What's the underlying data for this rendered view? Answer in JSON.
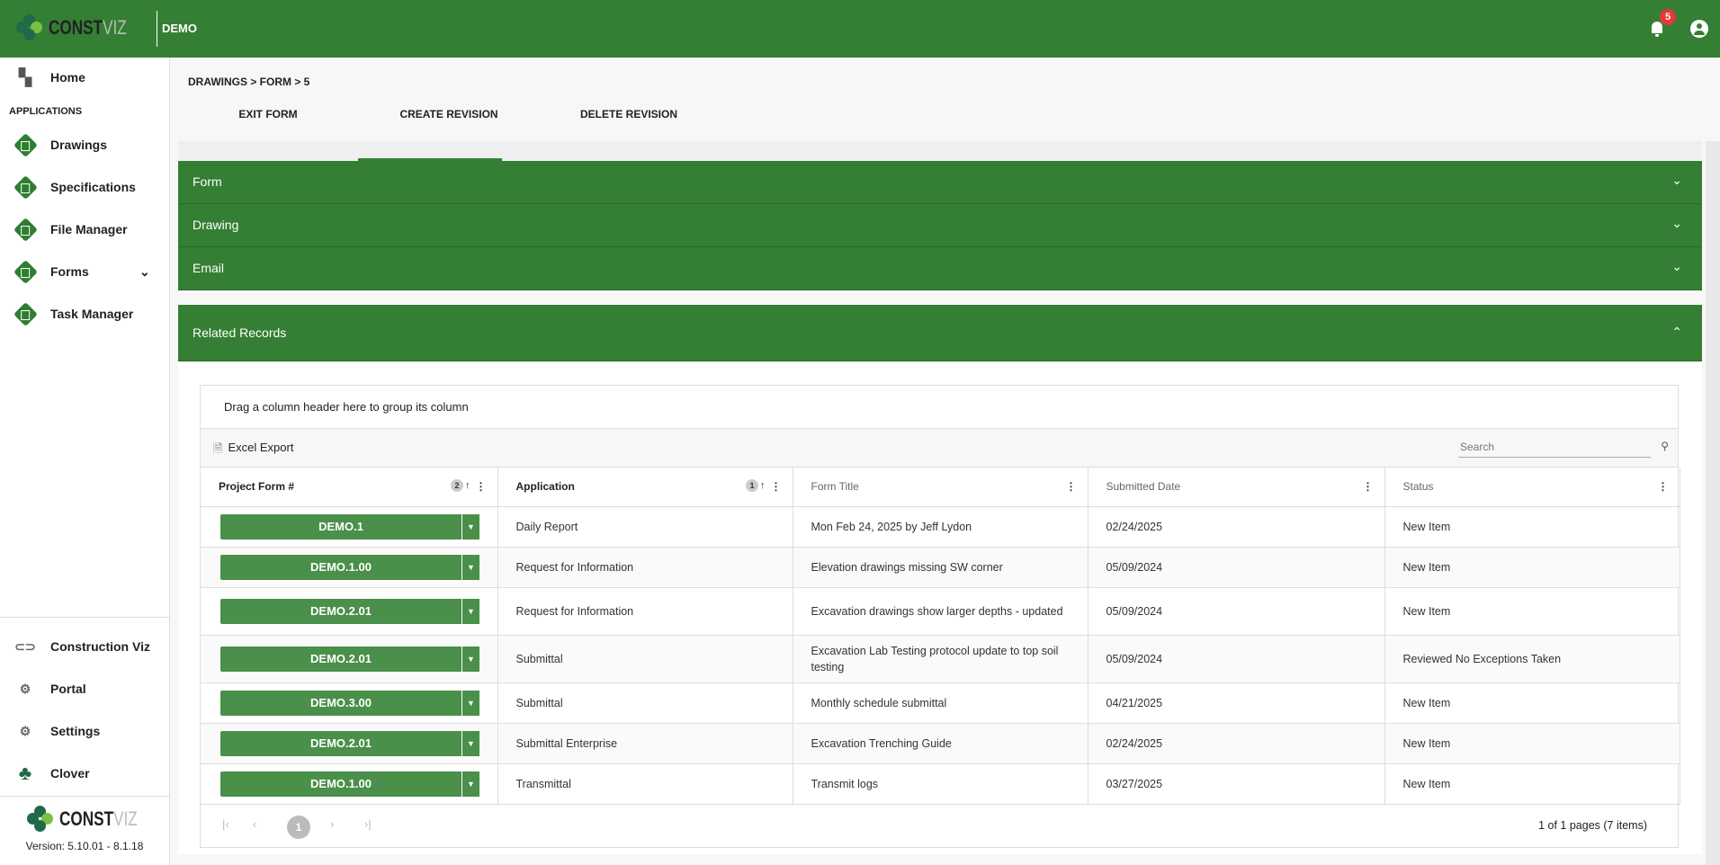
{
  "header": {
    "logo_text": "CONSTVIZ",
    "project": "DEMO",
    "notifications_count": "5",
    "color": "#347f33"
  },
  "sidebar": {
    "home": "Home",
    "section": "APPLICATIONS",
    "items": [
      {
        "label": "Drawings"
      },
      {
        "label": "Specifications"
      },
      {
        "label": "File Manager"
      },
      {
        "label": "Forms"
      },
      {
        "label": "Task Manager"
      }
    ],
    "bottom": [
      {
        "label": "Construction Viz"
      },
      {
        "label": "Portal"
      },
      {
        "label": "Settings"
      },
      {
        "label": "Clover"
      }
    ],
    "version": "Version: 5.10.01 - 8.1.18"
  },
  "breadcrumb": "DRAWINGS > FORM > 5",
  "tabs": [
    {
      "label": "EXIT FORM"
    },
    {
      "label": "CREATE REVISION"
    },
    {
      "label": "DELETE REVISION"
    }
  ],
  "accordions": [
    {
      "label": "Form"
    },
    {
      "label": "Drawing"
    },
    {
      "label": "Email"
    },
    {
      "label": "Related Records"
    }
  ],
  "grid": {
    "group_hint": "Drag a column header here to group its column",
    "export_label": "Excel Export",
    "search_placeholder": "Search",
    "columns": [
      {
        "label": "Project Form #",
        "sort_order": "2"
      },
      {
        "label": "Application",
        "sort_order": "1"
      },
      {
        "label": "Form Title"
      },
      {
        "label": "Submitted Date"
      },
      {
        "label": "Status"
      }
    ],
    "rows": [
      [
        "DEMO.1",
        "Daily Report",
        "Mon Feb 24, 2025 by Jeff Lydon",
        "02/24/2025",
        "New Item"
      ],
      [
        "DEMO.1.00",
        "Request for Information",
        "Elevation drawings missing SW corner",
        "05/09/2024",
        "New Item"
      ],
      [
        "DEMO.2.01",
        "Request for Information",
        "Excavation drawings show larger depths - updated",
        "05/09/2024",
        "New Item"
      ],
      [
        "DEMO.2.01",
        "Submittal",
        "Excavation Lab Testing protocol update to top soil testing",
        "05/09/2024",
        "Reviewed No Exceptions Taken"
      ],
      [
        "DEMO.3.00",
        "Submittal",
        "Monthly schedule submittal",
        "04/21/2025",
        "New Item"
      ],
      [
        "DEMO.2.01",
        "Submittal Enterprise",
        "Excavation Trenching Guide",
        "02/24/2025",
        "New Item"
      ],
      [
        "DEMO.1.00",
        "Transmittal",
        "Transmit logs",
        "03/27/2025",
        "New Item"
      ]
    ],
    "current_page": "1",
    "page_info": "1 of 1 pages (7 items)"
  }
}
